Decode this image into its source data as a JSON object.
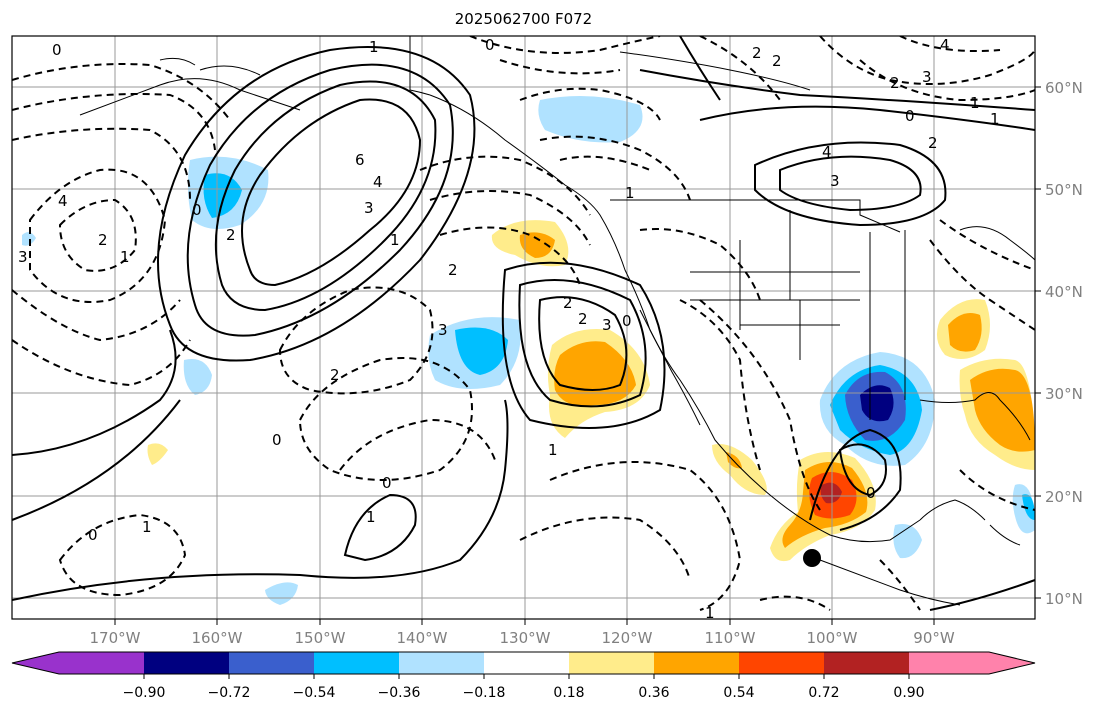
{
  "title": "2025062700 F072",
  "longitude_ticks": [
    "170°W",
    "160°W",
    "150°W",
    "140°W",
    "130°W",
    "120°W",
    "110°W",
    "100°W",
    "90°W"
  ],
  "latitude_ticks": [
    "60°N",
    "50°N",
    "40°N",
    "30°N",
    "20°N",
    "10°N"
  ],
  "colorbar": {
    "tick_labels": [
      "−0.90",
      "−0.72",
      "−0.54",
      "−0.36",
      "−0.18",
      "0.18",
      "0.36",
      "0.54",
      "0.72",
      "0.90"
    ],
    "colors": [
      "#9932cc",
      "#000080",
      "#3a5fcd",
      "#00bfff",
      "#b0e2ff",
      "#ffffff",
      "#ffec8b",
      "#ffa500",
      "#ff4500",
      "#b22222",
      "#ff82ab"
    ]
  },
  "contour_labels": [
    {
      "text": "0"
    },
    {
      "text": "1"
    },
    {
      "text": "0"
    },
    {
      "text": "4"
    },
    {
      "text": "2"
    },
    {
      "text": "2"
    },
    {
      "text": "2"
    },
    {
      "text": "3"
    },
    {
      "text": "1"
    },
    {
      "text": "0"
    },
    {
      "text": "1"
    },
    {
      "text": "2"
    },
    {
      "text": "4"
    },
    {
      "text": "3"
    },
    {
      "text": "6"
    },
    {
      "text": "4"
    },
    {
      "text": "3"
    },
    {
      "text": "2"
    },
    {
      "text": "1"
    },
    {
      "text": "0"
    },
    {
      "text": "4"
    },
    {
      "text": "2"
    },
    {
      "text": "1"
    },
    {
      "text": "3"
    },
    {
      "text": "1"
    },
    {
      "text": "2"
    },
    {
      "text": "3"
    },
    {
      "text": "2"
    },
    {
      "text": "2"
    },
    {
      "text": "3"
    },
    {
      "text": "0"
    },
    {
      "text": "2"
    },
    {
      "text": "0"
    },
    {
      "text": "1"
    },
    {
      "text": "0"
    },
    {
      "text": "1"
    },
    {
      "text": "0"
    },
    {
      "text": "1"
    },
    {
      "text": "0"
    },
    {
      "text": "1"
    }
  ],
  "marker": {
    "label": "station-marker"
  }
}
